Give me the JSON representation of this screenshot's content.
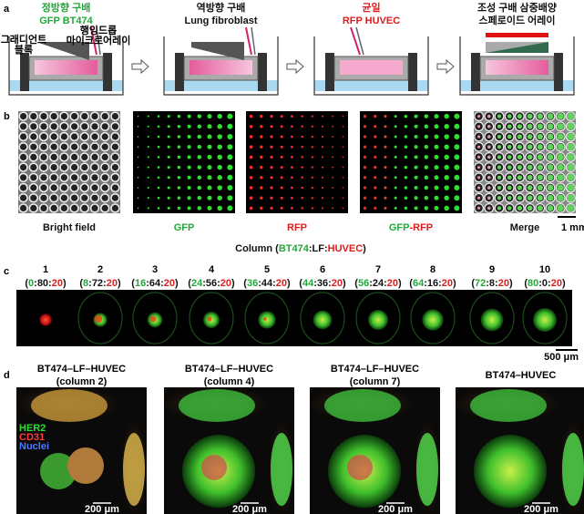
{
  "panel_a": {
    "label": "a",
    "steps": [
      {
        "title": "정방향 구배",
        "subtitle": "GFP BT474"
      },
      {
        "title": "역방향 구배",
        "subtitle": "Lung fibroblast"
      },
      {
        "title": "균일",
        "subtitle": "RFP HUVEC"
      },
      {
        "title": "조성 구배 삼중배양",
        "subtitle": "스페로이드 어레이"
      }
    ],
    "annotations": [
      "그래디언트",
      "블록",
      "행잉드롭",
      "마이크로어레이"
    ]
  },
  "panel_b": {
    "label": "b",
    "images": [
      [
        "Bright field"
      ],
      [
        "GFP"
      ],
      [
        "RFP"
      ],
      [
        "GFP",
        "-RFP"
      ],
      [
        "Merge"
      ]
    ],
    "scale_bar": "1 mm"
  },
  "panel_c": {
    "label": "c",
    "header": [
      "Column (",
      "BT474",
      ":LF:",
      "HUVEC",
      ")"
    ],
    "columns": [
      {
        "number": "1",
        "ratio": [
          "(",
          "0",
          ":80:",
          "20",
          ")"
        ]
      },
      {
        "number": "2",
        "ratio": [
          "(",
          "8",
          ":72:",
          "20",
          ")"
        ]
      },
      {
        "number": "3",
        "ratio": [
          "(",
          "16",
          ":64:",
          "20",
          ")"
        ]
      },
      {
        "number": "4",
        "ratio": [
          "(",
          "24",
          ":56:",
          "20",
          ")"
        ]
      },
      {
        "number": "5",
        "ratio": [
          "(",
          "36",
          ":44:",
          "20",
          ")"
        ]
      },
      {
        "number": "6",
        "ratio": [
          "(",
          "44",
          ":36:",
          "20",
          ")"
        ]
      },
      {
        "number": "7",
        "ratio": [
          "(",
          "56",
          ":24:",
          "20",
          ")"
        ]
      },
      {
        "number": "8",
        "ratio": [
          "(",
          "64",
          ":16:",
          "20",
          ")"
        ]
      },
      {
        "number": "9",
        "ratio": [
          "(",
          "72",
          ":8:",
          "20",
          ")"
        ]
      },
      {
        "number": "10",
        "ratio": [
          "(",
          "80",
          ":0:",
          "20",
          ")"
        ]
      }
    ],
    "scale_bar": "500 μm"
  },
  "panel_d": {
    "label": "d",
    "images": [
      {
        "title": [
          "BT474–LF–HUVEC",
          "(column 2)"
        ]
      },
      {
        "title": [
          "BT474–LF–HUVEC",
          "(column 4)"
        ]
      },
      {
        "title": [
          "BT474–LF–HUVEC",
          "(column 7)"
        ]
      },
      {
        "title": [
          "BT474–HUVEC"
        ]
      }
    ],
    "legend": [
      "HER2",
      "CD31",
      "Nuclei"
    ],
    "scale_bar": "200 μm"
  }
}
